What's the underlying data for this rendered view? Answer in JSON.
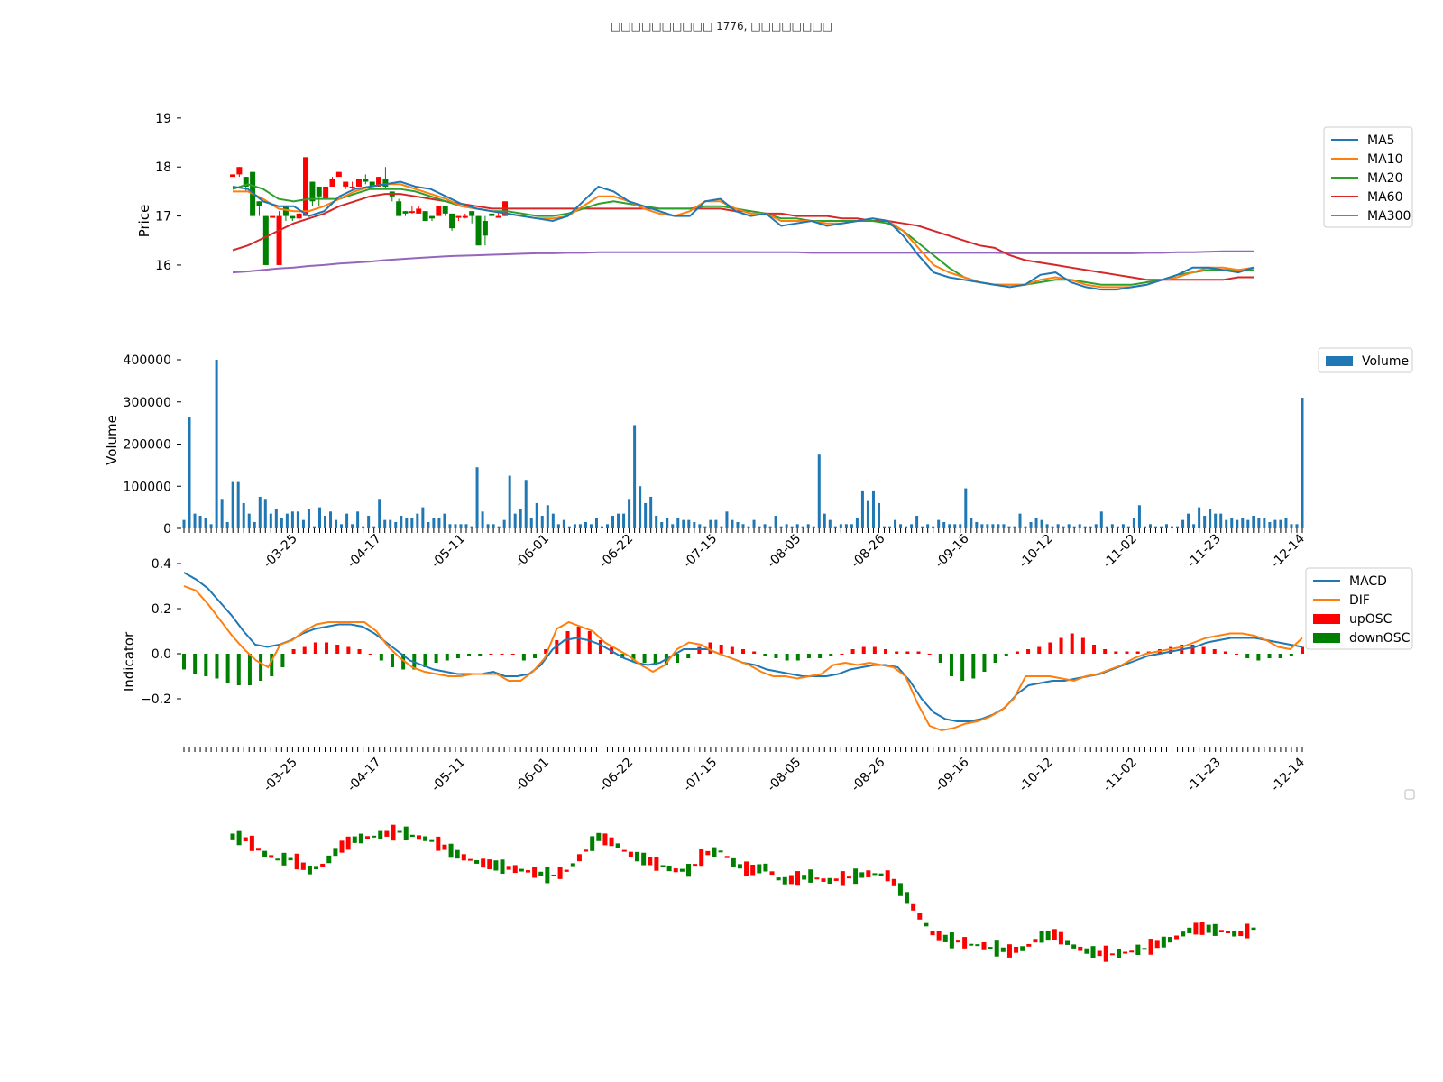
{
  "title": "□□□□□□□□□□ 1776, □□□□□□□□",
  "colors": {
    "ma5": "#1f77b4",
    "ma10": "#ff7f0e",
    "ma20": "#2ca02c",
    "ma60": "#d62728",
    "ma300": "#9467bd",
    "up": "#ff0000",
    "down": "#008000",
    "volume": "#1f77b4",
    "macd": "#1f77b4",
    "dif": "#ff7f0e"
  },
  "chart_data": [
    {
      "type": "line",
      "name": "price",
      "ylabel": "Price",
      "yticks": [
        16,
        17,
        18,
        19
      ],
      "ylim": [
        15.3,
        19.2
      ],
      "legend": [
        "MA5",
        "MA10",
        "MA20",
        "MA60",
        "MA300"
      ],
      "legend_position": "right",
      "candles_note": "candlestick bars, red = up, green = down",
      "ma5": [
        17.6,
        17.55,
        17.3,
        17.2,
        17.2,
        17.0,
        17.1,
        17.4,
        17.55,
        17.6,
        17.65,
        17.7,
        17.6,
        17.55,
        17.4,
        17.25,
        17.15,
        17.1,
        17.05,
        17.0,
        16.95,
        16.9,
        17.0,
        17.3,
        17.6,
        17.5,
        17.3,
        17.2,
        17.1,
        17.0,
        17.0,
        17.3,
        17.35,
        17.1,
        17.0,
        17.05,
        16.8,
        16.85,
        16.9,
        16.8,
        16.85,
        16.9,
        16.95,
        16.9,
        16.6,
        16.2,
        15.85,
        15.75,
        15.7,
        15.65,
        15.6,
        15.55,
        15.6,
        15.8,
        15.85,
        15.65,
        15.55,
        15.5,
        15.5,
        15.55,
        15.6,
        15.7,
        15.8,
        15.95,
        15.95,
        15.9,
        15.85,
        15.95
      ],
      "ma10": [
        17.5,
        17.5,
        17.35,
        17.15,
        17.1,
        17.1,
        17.2,
        17.35,
        17.5,
        17.6,
        17.65,
        17.65,
        17.55,
        17.45,
        17.35,
        17.2,
        17.15,
        17.1,
        17.05,
        17.0,
        16.95,
        16.95,
        17.0,
        17.2,
        17.4,
        17.4,
        17.3,
        17.15,
        17.05,
        17.0,
        17.1,
        17.3,
        17.3,
        17.15,
        17.05,
        17.05,
        16.9,
        16.9,
        16.9,
        16.85,
        16.85,
        16.9,
        16.95,
        16.9,
        16.7,
        16.35,
        16.0,
        15.85,
        15.75,
        15.65,
        15.6,
        15.6,
        15.6,
        15.7,
        15.75,
        15.7,
        15.6,
        15.55,
        15.55,
        15.55,
        15.6,
        15.7,
        15.75,
        15.85,
        15.95,
        15.95,
        15.9,
        15.95
      ],
      "ma20": [
        17.55,
        17.65,
        17.55,
        17.35,
        17.3,
        17.35,
        17.35,
        17.35,
        17.45,
        17.55,
        17.55,
        17.55,
        17.5,
        17.4,
        17.3,
        17.2,
        17.15,
        17.1,
        17.1,
        17.05,
        17.0,
        17.0,
        17.05,
        17.15,
        17.25,
        17.3,
        17.25,
        17.2,
        17.15,
        17.15,
        17.15,
        17.2,
        17.2,
        17.15,
        17.1,
        17.05,
        16.95,
        16.95,
        16.9,
        16.9,
        16.9,
        16.9,
        16.9,
        16.85,
        16.7,
        16.45,
        16.2,
        15.95,
        15.75,
        15.65,
        15.6,
        15.6,
        15.6,
        15.65,
        15.7,
        15.7,
        15.65,
        15.6,
        15.6,
        15.6,
        15.65,
        15.7,
        15.8,
        15.85,
        15.9,
        15.9,
        15.9,
        15.9
      ],
      "ma60": [
        16.3,
        16.4,
        16.55,
        16.7,
        16.85,
        16.95,
        17.05,
        17.2,
        17.3,
        17.4,
        17.45,
        17.45,
        17.4,
        17.35,
        17.3,
        17.25,
        17.2,
        17.15,
        17.15,
        17.15,
        17.15,
        17.15,
        17.15,
        17.15,
        17.15,
        17.15,
        17.15,
        17.15,
        17.15,
        17.15,
        17.15,
        17.15,
        17.15,
        17.1,
        17.1,
        17.05,
        17.05,
        17.0,
        17.0,
        17.0,
        16.95,
        16.95,
        16.9,
        16.9,
        16.85,
        16.8,
        16.7,
        16.6,
        16.5,
        16.4,
        16.35,
        16.2,
        16.1,
        16.05,
        16.0,
        15.95,
        15.9,
        15.85,
        15.8,
        15.75,
        15.7,
        15.7,
        15.7,
        15.7,
        15.7,
        15.7,
        15.75,
        15.75
      ],
      "ma300": [
        15.85,
        15.87,
        15.9,
        15.93,
        15.95,
        15.98,
        16.0,
        16.03,
        16.05,
        16.07,
        16.1,
        16.12,
        16.14,
        16.16,
        16.18,
        16.19,
        16.2,
        16.21,
        16.22,
        16.23,
        16.24,
        16.24,
        16.25,
        16.25,
        16.26,
        16.26,
        16.26,
        16.26,
        16.26,
        16.26,
        16.26,
        16.26,
        16.26,
        16.26,
        16.26,
        16.26,
        16.26,
        16.26,
        16.25,
        16.25,
        16.25,
        16.25,
        16.25,
        16.25,
        16.25,
        16.25,
        16.25,
        16.25,
        16.25,
        16.25,
        16.25,
        16.24,
        16.24,
        16.24,
        16.24,
        16.24,
        16.24,
        16.24,
        16.24,
        16.24,
        16.25,
        16.25,
        16.26,
        16.26,
        16.27,
        16.28,
        16.28,
        16.28
      ],
      "candles": [
        [
          17.8,
          17.85,
          17.8,
          17.85
        ],
        [
          17.85,
          18.0,
          17.8,
          18.0
        ],
        [
          17.8,
          17.8,
          17.5,
          17.6
        ],
        [
          17.9,
          17.9,
          17.0,
          17.0
        ],
        [
          17.3,
          17.3,
          17.0,
          17.2
        ],
        [
          17.0,
          17.0,
          16.0,
          16.0
        ],
        [
          17.0,
          17.0,
          17.0,
          17.0
        ],
        [
          16.0,
          17.1,
          16.0,
          17.0
        ],
        [
          17.2,
          17.2,
          16.9,
          17.0
        ],
        [
          17.0,
          17.0,
          16.9,
          16.95
        ],
        [
          16.95,
          17.1,
          16.9,
          17.05
        ],
        [
          17.0,
          18.2,
          17.0,
          18.2
        ],
        [
          17.7,
          17.7,
          17.2,
          17.3
        ],
        [
          17.6,
          17.6,
          17.2,
          17.4
        ],
        [
          17.35,
          17.6,
          17.35,
          17.6
        ],
        [
          17.6,
          17.8,
          17.6,
          17.75
        ],
        [
          17.8,
          17.9,
          17.8,
          17.9
        ],
        [
          17.6,
          17.7,
          17.55,
          17.7
        ],
        [
          17.6,
          17.7,
          17.55,
          17.6
        ],
        [
          17.6,
          17.75,
          17.6,
          17.75
        ],
        [
          17.75,
          17.85,
          17.65,
          17.7
        ],
        [
          17.7,
          17.7,
          17.55,
          17.6
        ],
        [
          17.6,
          17.8,
          17.6,
          17.8
        ],
        [
          17.75,
          18.0,
          17.55,
          17.6
        ],
        [
          17.5,
          17.5,
          17.3,
          17.4
        ],
        [
          17.3,
          17.35,
          17.0,
          17.0
        ],
        [
          17.1,
          17.1,
          17.0,
          17.05
        ],
        [
          17.1,
          17.2,
          17.05,
          17.1
        ],
        [
          17.05,
          17.2,
          17.05,
          17.15
        ],
        [
          17.1,
          17.1,
          16.9,
          16.9
        ],
        [
          17.0,
          17.0,
          16.9,
          16.95
        ],
        [
          17.0,
          17.2,
          17.0,
          17.2
        ],
        [
          17.2,
          17.2,
          17.0,
          17.05
        ],
        [
          17.05,
          17.05,
          16.7,
          16.75
        ],
        [
          17.0,
          17.0,
          16.9,
          17.0
        ],
        [
          17.0,
          17.05,
          16.95,
          17.0
        ],
        [
          17.1,
          17.1,
          16.85,
          17.0
        ],
        [
          17.0,
          17.0,
          16.4,
          16.4
        ],
        [
          16.9,
          17.0,
          16.4,
          16.6
        ],
        [
          17.05,
          17.05,
          17.0,
          17.0
        ],
        [
          17.0,
          17.1,
          17.0,
          17.0
        ],
        [
          17.0,
          17.3,
          17.0,
          17.3
        ]
      ]
    },
    {
      "type": "bar",
      "name": "volume",
      "ylabel": "Volume",
      "yticks": [
        0,
        100000,
        200000,
        300000,
        400000
      ],
      "ylim": [
        0,
        400000
      ],
      "legend": [
        "Volume"
      ],
      "legend_position": "top-right",
      "values": [
        20000,
        265000,
        35000,
        30000,
        25000,
        10000,
        400000,
        70000,
        15000,
        110000,
        110000,
        60000,
        35000,
        15000,
        75000,
        70000,
        35000,
        45000,
        25000,
        35000,
        40000,
        40000,
        20000,
        45000,
        5000,
        50000,
        30000,
        40000,
        20000,
        10000,
        35000,
        10000,
        40000,
        5000,
        30000,
        5000,
        70000,
        20000,
        20000,
        15000,
        30000,
        25000,
        25000,
        35000,
        50000,
        15000,
        25000,
        25000,
        35000,
        10000,
        10000,
        10000,
        10000,
        5000,
        145000,
        40000,
        10000,
        10000,
        5000,
        20000,
        125000,
        35000,
        45000,
        115000,
        25000,
        60000,
        30000,
        55000,
        35000,
        10000,
        20000,
        5000,
        10000,
        10000,
        15000,
        10000,
        25000,
        5000,
        10000,
        30000,
        35000,
        35000,
        70000,
        245000,
        100000,
        60000,
        75000,
        30000,
        15000,
        25000,
        10000,
        25000,
        20000,
        20000,
        15000,
        10000,
        5000,
        20000,
        20000,
        5000,
        40000,
        20000,
        15000,
        10000,
        5000,
        20000,
        5000,
        10000,
        5000,
        30000,
        5000,
        10000,
        5000,
        10000,
        5000,
        10000,
        5000,
        175000,
        35000,
        20000,
        5000,
        10000,
        10000,
        10000,
        25000,
        90000,
        65000,
        90000,
        60000,
        5000,
        5000,
        20000,
        10000,
        5000,
        10000,
        30000,
        5000,
        10000,
        5000,
        20000,
        15000,
        10000,
        10000,
        10000,
        95000,
        25000,
        15000,
        10000,
        10000,
        10000,
        10000,
        10000,
        5000,
        5000,
        35000,
        5000,
        15000,
        25000,
        20000,
        10000,
        5000,
        10000,
        5000,
        10000,
        5000,
        10000,
        5000,
        5000,
        10000,
        40000,
        5000,
        10000,
        5000,
        10000,
        5000,
        25000,
        55000,
        5000,
        10000,
        5000,
        5000,
        10000,
        5000,
        5000,
        20000,
        35000,
        10000,
        50000,
        30000,
        45000,
        35000,
        35000,
        20000,
        25000,
        20000,
        25000,
        20000,
        30000,
        25000,
        25000,
        15000,
        20000,
        20000,
        25000,
        10000,
        10000,
        310000
      ],
      "xticklabels": [
        "-03-25",
        "-04-17",
        "-05-11",
        "-06-01",
        "-06-22",
        "-07-15",
        "-08-05",
        "-08-26",
        "-09-16",
        "-10-12",
        "-11-02",
        "-11-23",
        "-12-14"
      ]
    },
    {
      "type": "line",
      "name": "indicator",
      "ylabel": "Indicator",
      "yticks": [
        -0.2,
        0.0,
        0.2,
        0.4
      ],
      "ylim": [
        -0.38,
        0.42
      ],
      "legend": [
        "MACD",
        "DIF",
        "upOSC",
        "downOSC"
      ],
      "legend_position": "right",
      "macd": [
        0.36,
        0.33,
        0.29,
        0.23,
        0.17,
        0.1,
        0.04,
        0.03,
        0.04,
        0.06,
        0.09,
        0.11,
        0.12,
        0.13,
        0.13,
        0.12,
        0.09,
        0.05,
        0.01,
        -0.03,
        -0.05,
        -0.07,
        -0.08,
        -0.09,
        -0.09,
        -0.09,
        -0.08,
        -0.1,
        -0.1,
        -0.09,
        -0.05,
        0.02,
        0.06,
        0.07,
        0.06,
        0.04,
        0.01,
        -0.02,
        -0.04,
        -0.05,
        -0.04,
        -0.01,
        0.02,
        0.02,
        0.02,
        0.0,
        -0.02,
        -0.04,
        -0.05,
        -0.07,
        -0.08,
        -0.09,
        -0.1,
        -0.1,
        -0.1,
        -0.09,
        -0.07,
        -0.06,
        -0.05,
        -0.05,
        -0.06,
        -0.12,
        -0.2,
        -0.26,
        -0.29,
        -0.3,
        -0.3,
        -0.29,
        -0.27,
        -0.24,
        -0.18,
        -0.14,
        -0.13,
        -0.12,
        -0.12,
        -0.11,
        -0.1,
        -0.09,
        -0.07,
        -0.05,
        -0.03,
        -0.01,
        0.0,
        0.01,
        0.02,
        0.03,
        0.05,
        0.06,
        0.07,
        0.07,
        0.07,
        0.06,
        0.05,
        0.04,
        0.03
      ],
      "dif": [
        0.3,
        0.28,
        0.22,
        0.15,
        0.08,
        0.02,
        -0.03,
        -0.06,
        0.04,
        0.06,
        0.1,
        0.13,
        0.14,
        0.14,
        0.14,
        0.14,
        0.1,
        0.03,
        -0.02,
        -0.06,
        -0.08,
        -0.09,
        -0.1,
        -0.1,
        -0.09,
        -0.09,
        -0.09,
        -0.12,
        -0.12,
        -0.08,
        -0.02,
        0.11,
        0.14,
        0.12,
        0.1,
        0.05,
        0.02,
        -0.01,
        -0.05,
        -0.08,
        -0.05,
        0.02,
        0.05,
        0.04,
        0.01,
        -0.01,
        -0.03,
        -0.05,
        -0.08,
        -0.1,
        -0.1,
        -0.11,
        -0.1,
        -0.09,
        -0.05,
        -0.04,
        -0.05,
        -0.04,
        -0.05,
        -0.06,
        -0.1,
        -0.22,
        -0.32,
        -0.34,
        -0.33,
        -0.31,
        -0.3,
        -0.28,
        -0.25,
        -0.2,
        -0.1,
        -0.1,
        -0.1,
        -0.11,
        -0.12,
        -0.1,
        -0.09,
        -0.07,
        -0.05,
        -0.02,
        0.0,
        0.01,
        0.02,
        0.03,
        0.05,
        0.07,
        0.08,
        0.09,
        0.09,
        0.08,
        0.06,
        0.03,
        0.02,
        0.07
      ],
      "osc": [
        -0.07,
        -0.09,
        -0.1,
        -0.11,
        -0.13,
        -0.14,
        -0.14,
        -0.12,
        -0.1,
        -0.06,
        0.02,
        0.03,
        0.05,
        0.05,
        0.04,
        0.03,
        0.02,
        0.0,
        -0.03,
        -0.06,
        -0.07,
        -0.07,
        -0.06,
        -0.04,
        -0.03,
        -0.02,
        -0.01,
        -0.01,
        0.0,
        0.0,
        0.0,
        -0.03,
        -0.02,
        0.02,
        0.06,
        0.1,
        0.12,
        0.1,
        0.06,
        0.03,
        -0.02,
        -0.03,
        -0.04,
        -0.05,
        -0.05,
        -0.04,
        -0.02,
        0.03,
        0.05,
        0.04,
        0.03,
        0.02,
        0.01,
        -0.01,
        -0.02,
        -0.03,
        -0.03,
        -0.02,
        -0.02,
        -0.01,
        0.0,
        0.02,
        0.03,
        0.03,
        0.02,
        0.01,
        0.01,
        0.01,
        0.0,
        -0.04,
        -0.1,
        -0.12,
        -0.11,
        -0.08,
        -0.04,
        -0.01,
        0.01,
        0.02,
        0.03,
        0.05,
        0.07,
        0.09,
        0.07,
        0.04,
        0.02,
        0.01,
        0.01,
        0.01,
        0.01,
        0.02,
        0.03,
        0.04,
        0.04,
        0.03,
        0.02,
        0.01,
        0.0,
        -0.02,
        -0.03,
        -0.02,
        -0.02,
        -0.01,
        0.03
      ],
      "xticklabels": [
        "-03-25",
        "-04-17",
        "-05-11",
        "-06-01",
        "-06-22",
        "-07-15",
        "-08-05",
        "-08-26",
        "-09-16",
        "-10-12",
        "-11-02",
        "-11-23",
        "-12-14"
      ]
    },
    {
      "type": "bar",
      "name": "candles-bottom",
      "candles_note": "candlestick body-only bars, red = up, green = down"
    }
  ]
}
